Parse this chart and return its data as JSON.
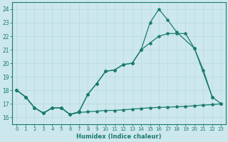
{
  "xlabel": "Humidex (Indice chaleur)",
  "xlim": [
    -0.5,
    23.5
  ],
  "ylim": [
    15.5,
    24.5
  ],
  "xticks": [
    0,
    1,
    2,
    3,
    4,
    5,
    6,
    7,
    8,
    9,
    10,
    11,
    12,
    13,
    14,
    15,
    16,
    17,
    18,
    19,
    20,
    21,
    22,
    23
  ],
  "yticks": [
    16,
    17,
    18,
    19,
    20,
    21,
    22,
    23,
    24
  ],
  "bg_color": "#cce8ed",
  "grid_color": "#b8d8dd",
  "line_color": "#1a7a6e",
  "curve1_x": [
    0,
    1,
    2,
    3,
    4,
    5,
    6,
    7,
    8,
    9,
    10,
    11,
    12,
    13,
    14,
    15,
    16,
    17,
    18,
    20,
    22
  ],
  "curve1_y": [
    18.0,
    17.5,
    16.7,
    16.3,
    16.7,
    16.7,
    16.2,
    16.4,
    17.7,
    18.5,
    19.4,
    19.5,
    19.9,
    20.0,
    21.0,
    23.0,
    24.0,
    23.2,
    22.3,
    21.1,
    17.5
  ],
  "curve2_x": [
    0,
    1,
    2,
    3,
    4,
    5,
    6,
    7,
    8,
    9,
    10,
    11,
    12,
    13,
    14,
    15,
    16,
    17,
    18,
    19,
    20,
    21,
    22,
    23
  ],
  "curve2_y": [
    18.0,
    17.5,
    16.7,
    16.3,
    16.7,
    16.7,
    16.2,
    16.4,
    17.7,
    18.5,
    19.4,
    19.5,
    19.9,
    20.0,
    21.0,
    21.5,
    22.0,
    22.2,
    22.2,
    22.2,
    21.1,
    19.5,
    17.5,
    17.0
  ],
  "curve3_x": [
    0,
    1,
    2,
    3,
    4,
    5,
    6,
    7,
    8,
    9,
    10,
    11,
    12,
    13,
    14,
    15,
    16,
    17,
    18,
    19,
    20,
    21,
    22,
    23
  ],
  "curve3_y": [
    18.0,
    17.5,
    16.7,
    16.3,
    16.7,
    16.7,
    16.2,
    16.35,
    16.4,
    16.45,
    16.5,
    16.5,
    16.55,
    16.6,
    16.65,
    16.7,
    16.72,
    16.75,
    16.77,
    16.8,
    16.85,
    16.9,
    16.93,
    17.0
  ]
}
